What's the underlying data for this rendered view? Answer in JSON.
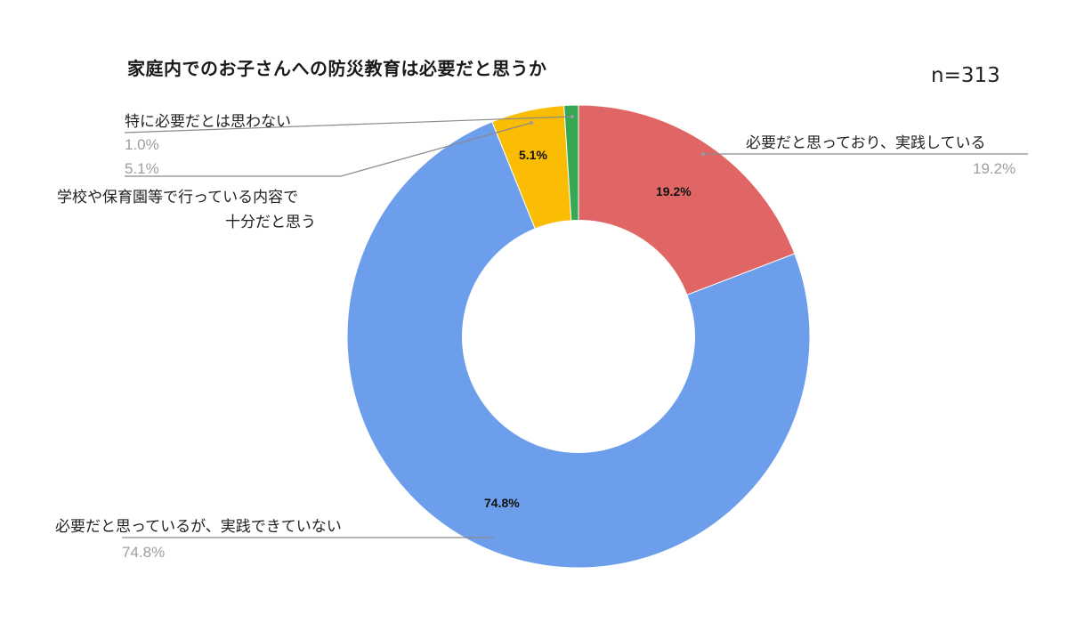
{
  "header": {
    "title": "家庭内でのお子さんへの防災教育は必要だと思うか",
    "sample_size": "n=313"
  },
  "chart_data": {
    "type": "pie",
    "subtype": "donut",
    "title": "家庭内でのお子さんへの防災教育は必要だと思うか",
    "annotation": "n=313",
    "categories": [
      "必要だと思っており、実践している",
      "必要だと思っているが、実践できていない",
      "学校や保育園等で行っている内容で十分だと思う",
      "特に必要だとは思わない"
    ],
    "values": [
      19.2,
      74.8,
      5.1,
      1.0
    ],
    "unit": "%",
    "colors": [
      "#e06666",
      "#6d9eeb",
      "#fbbc04",
      "#34a853"
    ],
    "start_angle_deg": 0,
    "direction": "clockwise",
    "legend": "callout labels with leader lines"
  },
  "slices": [
    {
      "label": "必要だと思っており、実践している",
      "value_text": "19.2%",
      "inner_text": "19.2%",
      "color": "#e06666"
    },
    {
      "label": "必要だと思っているが、実践できていない",
      "value_text": "74.8%",
      "inner_text": "74.8%",
      "color": "#6d9eeb"
    },
    {
      "label_line1": "学校や保育園等で行っている内容で",
      "label_line2": "十分だと思う",
      "value_text": "5.1%",
      "inner_text": "5.1%",
      "color": "#fbbc04"
    },
    {
      "label": "特に必要だとは思わない",
      "value_text": "1.0%",
      "color": "#34a853"
    }
  ]
}
